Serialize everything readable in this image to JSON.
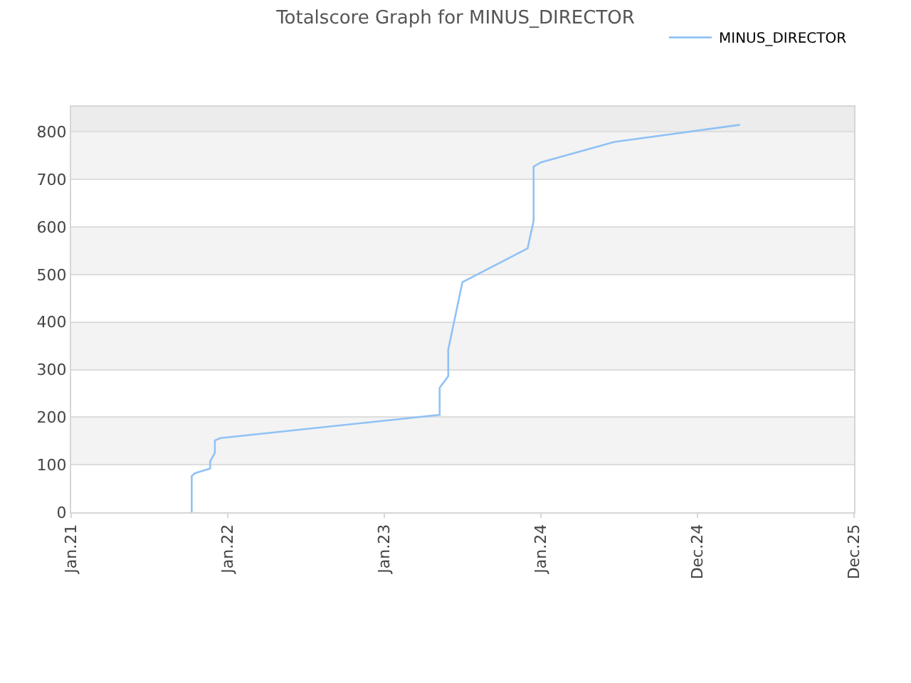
{
  "chart_data": {
    "type": "line",
    "title": "Totalscore Graph for MINUS_DIRECTOR",
    "x": [
      "2021-10-09",
      "2021-10-09",
      "2021-10-16",
      "2021-11-21",
      "2021-11-21",
      "2021-12-02",
      "2021-12-02",
      "2021-12-15",
      "2023-05-10",
      "2023-05-10",
      "2023-05-30",
      "2023-05-30",
      "2023-07-02",
      "2023-12-01",
      "2023-12-15",
      "2023-12-15",
      "2024-01-01",
      "2024-06-20",
      "2025-04-09"
    ],
    "series": [
      {
        "name": "MINUS_DIRECTOR",
        "color": "#90c2f5",
        "values": [
          0,
          76,
          82,
          92,
          107,
          125,
          151,
          156,
          205,
          262,
          286,
          342,
          484,
          555,
          613,
          727,
          736,
          779,
          815
        ]
      }
    ],
    "xlim": [
      "2021-01-01",
      "2025-12-31"
    ],
    "xticks": [
      {
        "value": "2021-01-01",
        "label": "Jan.21"
      },
      {
        "value": "2022-01-01",
        "label": "Jan.22"
      },
      {
        "value": "2023-01-01",
        "label": "Jan.23"
      },
      {
        "value": "2024-01-01",
        "label": "Jan.24"
      },
      {
        "value": "2024-12-31",
        "label": "Dec.24"
      },
      {
        "value": "2025-12-31",
        "label": "Dec.25"
      }
    ],
    "ylim": [
      0,
      853
    ],
    "yticks": [
      0,
      100,
      200,
      300,
      400,
      500,
      600,
      700,
      800
    ],
    "bands": [
      {
        "axis": "y",
        "from": 100,
        "to": 200,
        "color": "#f3f3f3"
      },
      {
        "axis": "y",
        "from": 300,
        "to": 400,
        "color": "#f3f3f3"
      },
      {
        "axis": "y",
        "from": 500,
        "to": 600,
        "color": "#f3f3f3"
      },
      {
        "axis": "y",
        "from": 700,
        "to": 800,
        "color": "#f3f3f3"
      },
      {
        "axis": "y",
        "from": 800,
        "to": 853,
        "color": "#ececec"
      }
    ],
    "grid": "y",
    "legend": "top right",
    "marker": "none",
    "line_style": "solid"
  }
}
